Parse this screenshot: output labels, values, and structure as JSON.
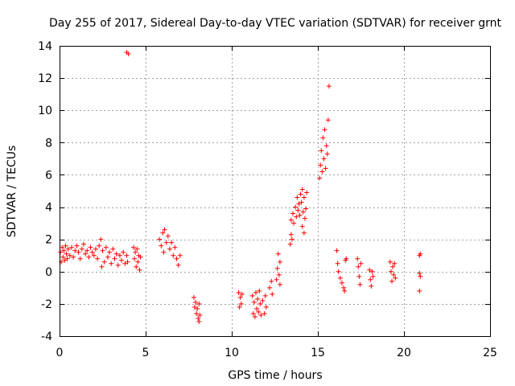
{
  "chart_data": {
    "type": "scatter",
    "title": "Day 255 of 2017, Sidereal Day-to-day VTEC variation (SDTVAR) for receiver grnt",
    "xlabel": "GPS time / hours",
    "ylabel": "SDTVAR / TECUs",
    "xlim": [
      0,
      25
    ],
    "ylim": [
      -4,
      14
    ],
    "grid": true,
    "marker": "plus",
    "marker_color": "#ff0000",
    "x_ticks": [
      0,
      5,
      10,
      15,
      20,
      25
    ],
    "x_tick_labels": [
      "0",
      "5",
      "10",
      "15",
      "20",
      "25"
    ],
    "y_ticks": [
      -4,
      -2,
      0,
      2,
      4,
      6,
      8,
      10,
      12,
      14
    ],
    "y_tick_labels": [
      "-4",
      "-2",
      "0",
      "2",
      "4",
      "6",
      "8",
      "10",
      "12",
      "14"
    ],
    "series": [
      {
        "name": "SDTVAR",
        "points": [
          [
            0.05,
            1.2
          ],
          [
            0.1,
            0.6
          ],
          [
            0.15,
            1.5
          ],
          [
            0.2,
            0.9
          ],
          [
            0.25,
            1.3
          ],
          [
            0.3,
            0.7
          ],
          [
            0.35,
            1.6
          ],
          [
            0.4,
            1.1
          ],
          [
            0.45,
            0.8
          ],
          [
            0.5,
            1.4
          ],
          [
            0.6,
            1.0
          ],
          [
            0.7,
            1.5
          ],
          [
            0.8,
            0.9
          ],
          [
            0.9,
            1.3
          ],
          [
            1.0,
            1.6
          ],
          [
            1.1,
            1.2
          ],
          [
            1.2,
            0.8
          ],
          [
            1.3,
            1.4
          ],
          [
            1.4,
            1.7
          ],
          [
            1.5,
            1.1
          ],
          [
            1.6,
            1.3
          ],
          [
            1.7,
            0.9
          ],
          [
            1.8,
            1.5
          ],
          [
            1.9,
            1.2
          ],
          [
            2.0,
            1.0
          ],
          [
            2.1,
            1.4
          ],
          [
            2.2,
            0.8
          ],
          [
            2.3,
            1.6
          ],
          [
            2.4,
            2.0
          ],
          [
            2.45,
            0.3
          ],
          [
            2.5,
            1.3
          ],
          [
            2.6,
            0.6
          ],
          [
            2.7,
            1.5
          ],
          [
            2.8,
            0.9
          ],
          [
            2.9,
            1.2
          ],
          [
            3.0,
            0.5
          ],
          [
            3.1,
            1.4
          ],
          [
            3.2,
            0.8
          ],
          [
            3.3,
            1.1
          ],
          [
            3.4,
            0.4
          ],
          [
            3.5,
            1.0
          ],
          [
            3.6,
            0.7
          ],
          [
            3.7,
            1.2
          ],
          [
            3.8,
            0.5
          ],
          [
            3.9,
            1.0
          ],
          [
            3.95,
            0.6
          ],
          [
            3.9,
            13.6
          ],
          [
            4.0,
            13.5
          ],
          [
            4.3,
            1.5
          ],
          [
            4.35,
            0.8
          ],
          [
            4.4,
            1.2
          ],
          [
            4.45,
            0.3
          ],
          [
            4.5,
            1.4
          ],
          [
            4.55,
            0.6
          ],
          [
            4.6,
            1.0
          ],
          [
            4.65,
            0.1
          ],
          [
            4.7,
            0.9
          ],
          [
            5.8,
            2.0
          ],
          [
            5.9,
            1.6
          ],
          [
            6.0,
            2.4
          ],
          [
            6.05,
            1.2
          ],
          [
            6.1,
            2.6
          ],
          [
            6.2,
            1.8
          ],
          [
            6.3,
            2.2
          ],
          [
            6.4,
            1.4
          ],
          [
            6.5,
            1.8
          ],
          [
            6.6,
            1.0
          ],
          [
            6.7,
            1.5
          ],
          [
            6.8,
            0.8
          ],
          [
            6.9,
            0.4
          ],
          [
            7.0,
            1.0
          ],
          [
            7.8,
            -1.6
          ],
          [
            7.85,
            -2.2
          ],
          [
            7.9,
            -1.9
          ],
          [
            7.95,
            -2.6
          ],
          [
            8.0,
            -2.3
          ],
          [
            8.05,
            -2.9
          ],
          [
            8.1,
            -2.0
          ],
          [
            8.15,
            -2.7
          ],
          [
            8.1,
            -3.1
          ],
          [
            10.4,
            -1.3
          ],
          [
            10.45,
            -2.2
          ],
          [
            10.5,
            -1.6
          ],
          [
            10.55,
            -2.0
          ],
          [
            10.6,
            -1.4
          ],
          [
            11.2,
            -1.5
          ],
          [
            11.25,
            -2.6
          ],
          [
            11.3,
            -1.9
          ],
          [
            11.35,
            -2.8
          ],
          [
            11.4,
            -1.3
          ],
          [
            11.45,
            -2.3
          ],
          [
            11.5,
            -1.7
          ],
          [
            11.55,
            -2.5
          ],
          [
            11.6,
            -1.2
          ],
          [
            11.65,
            -2.0
          ],
          [
            11.7,
            -2.7
          ],
          [
            11.8,
            -1.8
          ],
          [
            11.9,
            -2.6
          ],
          [
            11.95,
            -1.5
          ],
          [
            12.0,
            -2.2
          ],
          [
            12.2,
            -1.0
          ],
          [
            12.3,
            -0.6
          ],
          [
            12.35,
            -1.4
          ],
          [
            12.6,
            -0.5
          ],
          [
            12.65,
            0.2
          ],
          [
            12.7,
            1.1
          ],
          [
            12.75,
            -0.2
          ],
          [
            12.8,
            0.6
          ],
          [
            12.8,
            -0.8
          ],
          [
            13.4,
            1.7
          ],
          [
            13.45,
            2.3
          ],
          [
            13.5,
            2.0
          ],
          [
            13.45,
            3.2
          ],
          [
            13.55,
            3.6
          ],
          [
            13.6,
            3.0
          ],
          [
            13.7,
            4.0
          ],
          [
            13.75,
            3.4
          ],
          [
            13.8,
            4.6
          ],
          [
            13.85,
            3.8
          ],
          [
            13.9,
            4.2
          ],
          [
            13.95,
            3.5
          ],
          [
            14.0,
            4.8
          ],
          [
            14.05,
            4.3
          ],
          [
            14.1,
            5.1
          ],
          [
            14.15,
            3.7
          ],
          [
            14.2,
            4.6
          ],
          [
            14.25,
            3.3
          ],
          [
            14.3,
            3.9
          ],
          [
            14.35,
            4.9
          ],
          [
            14.1,
            2.8
          ],
          [
            14.2,
            2.4
          ],
          [
            15.1,
            5.8
          ],
          [
            15.15,
            6.6
          ],
          [
            15.2,
            7.5
          ],
          [
            15.25,
            6.2
          ],
          [
            15.3,
            8.3
          ],
          [
            15.35,
            7.0
          ],
          [
            15.4,
            8.8
          ],
          [
            15.45,
            6.4
          ],
          [
            15.5,
            7.8
          ],
          [
            15.55,
            7.3
          ],
          [
            15.6,
            9.4
          ],
          [
            15.65,
            11.5
          ],
          [
            16.1,
            1.3
          ],
          [
            16.15,
            0.5
          ],
          [
            16.2,
            0.0
          ],
          [
            16.3,
            -0.4
          ],
          [
            16.4,
            -0.7
          ],
          [
            16.5,
            -1.0
          ],
          [
            16.55,
            -1.2
          ],
          [
            16.6,
            0.7
          ],
          [
            16.65,
            0.8
          ],
          [
            17.3,
            0.8
          ],
          [
            17.35,
            0.3
          ],
          [
            17.4,
            -0.3
          ],
          [
            17.45,
            -0.8
          ],
          [
            17.5,
            0.5
          ],
          [
            18.0,
            0.1
          ],
          [
            18.05,
            -0.5
          ],
          [
            18.1,
            -0.9
          ],
          [
            18.15,
            0.0
          ],
          [
            18.2,
            -0.3
          ],
          [
            19.2,
            0.6
          ],
          [
            19.25,
            0.0
          ],
          [
            19.3,
            -0.6
          ],
          [
            19.35,
            0.3
          ],
          [
            19.4,
            -0.2
          ],
          [
            19.45,
            0.5
          ],
          [
            19.5,
            -0.4
          ],
          [
            20.9,
            1.0
          ],
          [
            20.95,
            1.1
          ],
          [
            20.9,
            -0.1
          ],
          [
            20.95,
            -0.3
          ],
          [
            20.9,
            -1.2
          ]
        ]
      }
    ]
  }
}
